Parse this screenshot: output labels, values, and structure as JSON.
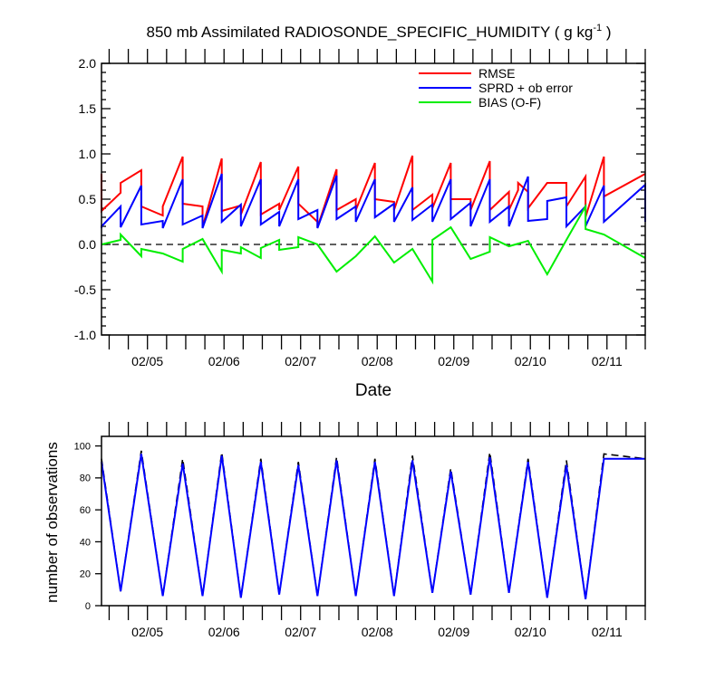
{
  "chart_data": [
    {
      "type": "line",
      "title": "850 mb Assimilated RADIOSONDE_SPECIFIC_HUMIDITY ( g kg",
      "title_sup": "-1",
      "title_end": " )",
      "xlabel": "Date",
      "ylabel": "",
      "ylim": [
        -1.0,
        2.0
      ],
      "yticks": [
        "-1.0",
        "-0.5",
        "0.0",
        "0.5",
        "1.0",
        "1.5",
        "2.0"
      ],
      "xlim": [
        4.4,
        11.5
      ],
      "xticks": [
        {
          "label": "02/05",
          "value": 5
        },
        {
          "label": "02/06",
          "value": 6
        },
        {
          "label": "02/07",
          "value": 7
        },
        {
          "label": "02/08",
          "value": 8
        },
        {
          "label": "02/09",
          "value": 9
        },
        {
          "label": "02/10",
          "value": 10
        },
        {
          "label": "02/11",
          "value": 11
        }
      ],
      "zero_line": true,
      "legend": "top-right",
      "series": [
        {
          "name": "RMSE",
          "color": "#ff0000",
          "points": [
            [
              4.4,
              0.78
            ],
            [
              4.4,
              0.37
            ],
            [
              4.65,
              0.57
            ],
            [
              4.65,
              0.68
            ],
            [
              4.92,
              0.82
            ],
            [
              4.92,
              0.42
            ],
            [
              5.2,
              0.32
            ],
            [
              5.2,
              0.42
            ],
            [
              5.46,
              0.97
            ],
            [
              5.46,
              0.45
            ],
            [
              5.72,
              0.42
            ],
            [
              5.72,
              0.19
            ],
            [
              5.97,
              0.95
            ],
            [
              5.97,
              0.37
            ],
            [
              6.22,
              0.43
            ],
            [
              6.22,
              0.33
            ],
            [
              6.48,
              0.91
            ],
            [
              6.48,
              0.33
            ],
            [
              6.72,
              0.45
            ],
            [
              6.72,
              0.38
            ],
            [
              6.97,
              0.86
            ],
            [
              6.97,
              0.45
            ],
            [
              7.22,
              0.25
            ],
            [
              7.22,
              0.19
            ],
            [
              7.47,
              0.83
            ],
            [
              7.47,
              0.38
            ],
            [
              7.72,
              0.5
            ],
            [
              7.72,
              0.38
            ],
            [
              7.97,
              0.9
            ],
            [
              7.97,
              0.5
            ],
            [
              8.22,
              0.47
            ],
            [
              8.22,
              0.38
            ],
            [
              8.46,
              0.98
            ],
            [
              8.46,
              0.38
            ],
            [
              8.72,
              0.55
            ],
            [
              8.72,
              0.4
            ],
            [
              8.96,
              0.9
            ],
            [
              8.96,
              0.5
            ],
            [
              9.22,
              0.5
            ],
            [
              9.22,
              0.38
            ],
            [
              9.47,
              0.92
            ],
            [
              9.47,
              0.38
            ],
            [
              9.72,
              0.58
            ],
            [
              9.72,
              0.38
            ],
            [
              9.84,
              0.6
            ],
            [
              9.84,
              0.68
            ],
            [
              9.97,
              0.58
            ],
            [
              9.97,
              0.4
            ],
            [
              10.22,
              0.68
            ],
            [
              10.47,
              0.68
            ],
            [
              10.47,
              0.42
            ],
            [
              10.72,
              0.75
            ],
            [
              10.72,
              0.3
            ],
            [
              10.96,
              0.97
            ],
            [
              10.96,
              0.53
            ],
            [
              11.5,
              0.78
            ]
          ]
        },
        {
          "name": "SPRD + ob error",
          "color": "#0000ff",
          "points": [
            [
              4.4,
              0.18
            ],
            [
              4.4,
              0.2
            ],
            [
              4.65,
              0.42
            ],
            [
              4.65,
              0.19
            ],
            [
              4.92,
              0.65
            ],
            [
              4.92,
              0.22
            ],
            [
              5.2,
              0.26
            ],
            [
              5.2,
              0.18
            ],
            [
              5.46,
              0.72
            ],
            [
              5.46,
              0.22
            ],
            [
              5.72,
              0.32
            ],
            [
              5.72,
              0.18
            ],
            [
              5.97,
              0.78
            ],
            [
              5.97,
              0.25
            ],
            [
              6.22,
              0.44
            ],
            [
              6.22,
              0.2
            ],
            [
              6.48,
              0.72
            ],
            [
              6.48,
              0.22
            ],
            [
              6.72,
              0.36
            ],
            [
              6.72,
              0.2
            ],
            [
              6.97,
              0.72
            ],
            [
              6.97,
              0.28
            ],
            [
              7.22,
              0.38
            ],
            [
              7.22,
              0.18
            ],
            [
              7.47,
              0.76
            ],
            [
              7.47,
              0.28
            ],
            [
              7.72,
              0.42
            ],
            [
              7.72,
              0.25
            ],
            [
              7.97,
              0.72
            ],
            [
              7.97,
              0.3
            ],
            [
              8.22,
              0.45
            ],
            [
              8.22,
              0.25
            ],
            [
              8.46,
              0.63
            ],
            [
              8.46,
              0.27
            ],
            [
              8.72,
              0.44
            ],
            [
              8.72,
              0.25
            ],
            [
              8.96,
              0.72
            ],
            [
              8.96,
              0.28
            ],
            [
              9.22,
              0.46
            ],
            [
              9.22,
              0.2
            ],
            [
              9.47,
              0.72
            ],
            [
              9.47,
              0.25
            ],
            [
              9.72,
              0.42
            ],
            [
              9.72,
              0.2
            ],
            [
              9.97,
              0.75
            ],
            [
              9.97,
              0.26
            ],
            [
              10.22,
              0.28
            ],
            [
              10.22,
              0.48
            ],
            [
              10.47,
              0.52
            ],
            [
              10.47,
              0.2
            ],
            [
              10.72,
              0.42
            ],
            [
              10.72,
              0.2
            ],
            [
              10.96,
              0.65
            ],
            [
              10.96,
              0.25
            ],
            [
              11.5,
              0.66
            ],
            [
              11.5,
              0.25
            ]
          ]
        },
        {
          "name": "BIAS (O-F)",
          "color": "#00ee00",
          "points": [
            [
              4.4,
              0.0
            ],
            [
              4.65,
              0.05
            ],
            [
              4.65,
              0.11
            ],
            [
              4.92,
              -0.13
            ],
            [
              4.92,
              -0.05
            ],
            [
              5.2,
              -0.1
            ],
            [
              5.46,
              -0.19
            ],
            [
              5.46,
              -0.05
            ],
            [
              5.72,
              0.06
            ],
            [
              5.97,
              -0.3
            ],
            [
              5.97,
              -0.06
            ],
            [
              6.22,
              -0.1
            ],
            [
              6.22,
              -0.03
            ],
            [
              6.48,
              -0.15
            ],
            [
              6.48,
              -0.04
            ],
            [
              6.72,
              0.05
            ],
            [
              6.72,
              -0.06
            ],
            [
              6.97,
              -0.03
            ],
            [
              6.97,
              0.08
            ],
            [
              7.22,
              0.0
            ],
            [
              7.47,
              -0.3
            ],
            [
              7.72,
              -0.13
            ],
            [
              7.97,
              0.09
            ],
            [
              8.22,
              -0.2
            ],
            [
              8.46,
              -0.05
            ],
            [
              8.72,
              -0.41
            ],
            [
              8.72,
              0.05
            ],
            [
              8.96,
              0.19
            ],
            [
              9.22,
              -0.16
            ],
            [
              9.47,
              -0.08
            ],
            [
              9.47,
              0.08
            ],
            [
              9.72,
              -0.02
            ],
            [
              9.97,
              0.04
            ],
            [
              10.22,
              -0.33
            ],
            [
              10.47,
              0.05
            ],
            [
              10.72,
              0.42
            ],
            [
              10.72,
              0.17
            ],
            [
              10.96,
              0.11
            ],
            [
              11.5,
              -0.15
            ]
          ]
        }
      ]
    },
    {
      "type": "line",
      "title": "",
      "xlabel": "",
      "ylabel": "number of observations",
      "ylim": [
        0,
        106
      ],
      "yticks": [
        "0",
        "20",
        "40",
        "60",
        "80",
        "100"
      ],
      "xlim": [
        4.4,
        11.5
      ],
      "xticks": [
        {
          "label": "02/05",
          "value": 5
        },
        {
          "label": "02/06",
          "value": 6
        },
        {
          "label": "02/07",
          "value": 7
        },
        {
          "label": "02/08",
          "value": 8
        },
        {
          "label": "02/09",
          "value": 9
        },
        {
          "label": "02/10",
          "value": 10
        },
        {
          "label": "02/11",
          "value": 11
        }
      ],
      "series": [
        {
          "color": "#000000",
          "dashed": true,
          "points": [
            [
              4.4,
              92
            ],
            [
              4.65,
              9
            ],
            [
              4.92,
              97
            ],
            [
              5.2,
              6
            ],
            [
              5.46,
              92
            ],
            [
              5.72,
              6
            ],
            [
              5.97,
              96
            ],
            [
              6.22,
              5
            ],
            [
              6.48,
              92
            ],
            [
              6.72,
              7
            ],
            [
              6.97,
              90
            ],
            [
              7.22,
              6
            ],
            [
              7.47,
              93
            ],
            [
              7.72,
              6
            ],
            [
              7.97,
              92
            ],
            [
              8.22,
              6
            ],
            [
              8.46,
              94
            ],
            [
              8.72,
              8
            ],
            [
              8.96,
              86
            ],
            [
              9.22,
              7
            ],
            [
              9.47,
              96
            ],
            [
              9.72,
              8
            ],
            [
              9.97,
              92
            ],
            [
              10.22,
              5
            ],
            [
              10.47,
              91
            ],
            [
              10.72,
              4
            ],
            [
              10.96,
              95
            ],
            [
              11.5,
              92
            ]
          ]
        },
        {
          "color": "#0000ff",
          "dashed": false,
          "points": [
            [
              4.4,
              90
            ],
            [
              4.65,
              9
            ],
            [
              4.92,
              95
            ],
            [
              5.2,
              6
            ],
            [
              5.46,
              89
            ],
            [
              5.72,
              6
            ],
            [
              5.97,
              94
            ],
            [
              6.22,
              5
            ],
            [
              6.48,
              90
            ],
            [
              6.72,
              7
            ],
            [
              6.97,
              88
            ],
            [
              7.22,
              6
            ],
            [
              7.47,
              91
            ],
            [
              7.72,
              6
            ],
            [
              7.97,
              90
            ],
            [
              8.22,
              6
            ],
            [
              8.46,
              91
            ],
            [
              8.72,
              8
            ],
            [
              8.96,
              84
            ],
            [
              9.22,
              7
            ],
            [
              9.47,
              93
            ],
            [
              9.72,
              8
            ],
            [
              9.97,
              90
            ],
            [
              10.22,
              5
            ],
            [
              10.47,
              88
            ],
            [
              10.72,
              4
            ],
            [
              10.96,
              92
            ],
            [
              11.5,
              92
            ]
          ]
        }
      ]
    }
  ]
}
